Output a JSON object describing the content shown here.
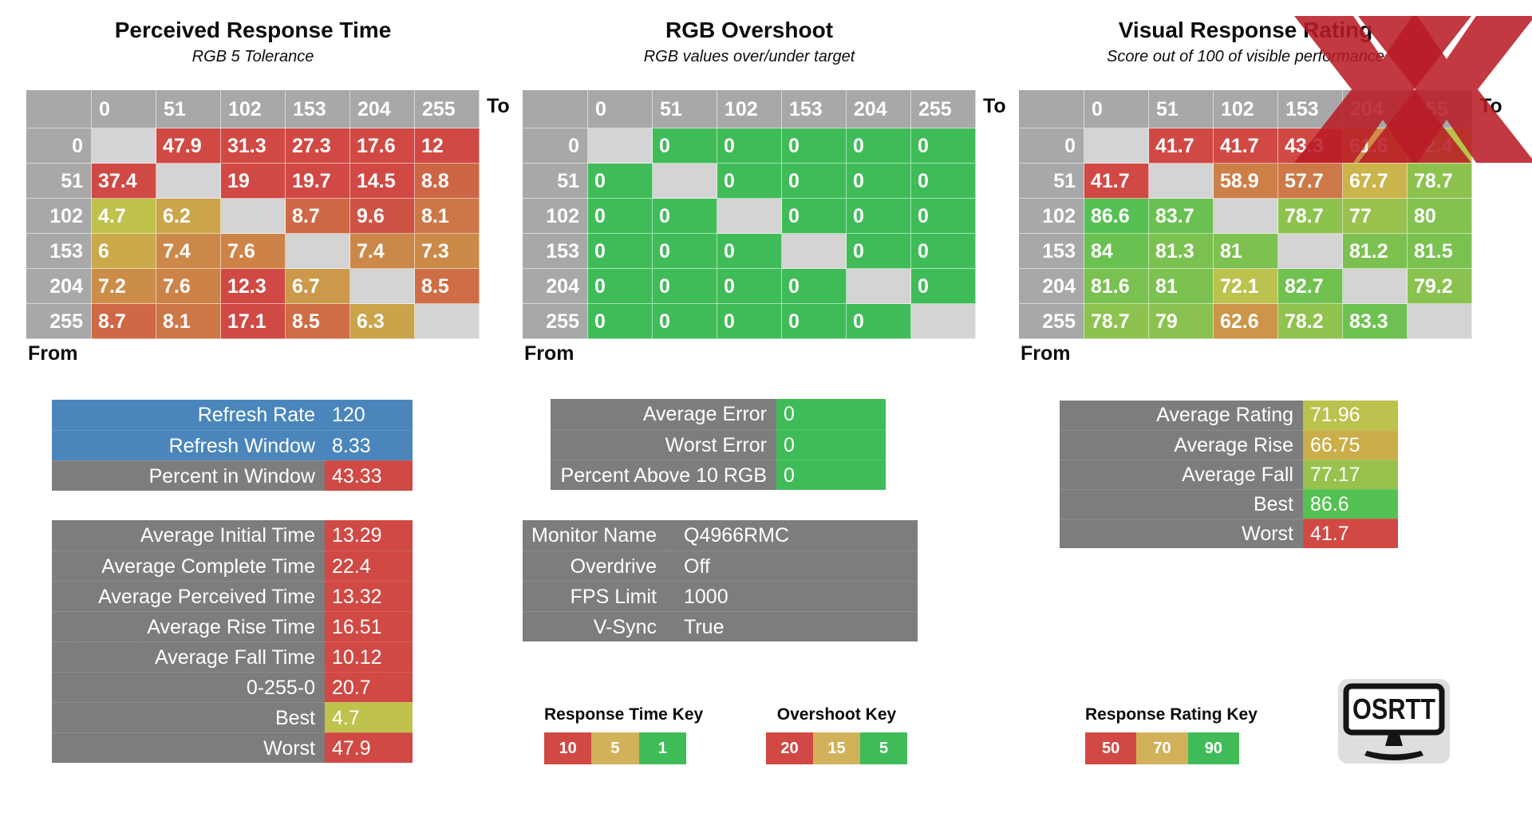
{
  "colors": {
    "header_gray": "#a8a8a8",
    "diagonal_gray": "#d4d4d4",
    "panel_gray": "#7d7d7d",
    "blue": "#4a86bb",
    "red": "#d04944",
    "key_yellow": "#d2b15b",
    "key_green": "#3fbc58",
    "x_mark_red": "#b91c26",
    "logo_bg": "#dedede"
  },
  "chart_data": [
    {
      "type": "heatmap",
      "title": "Perceived Response Time",
      "subtitle": "RGB 5 Tolerance",
      "x_axis_label": "To",
      "y_axis_label": "From",
      "x": [
        "0",
        "51",
        "102",
        "153",
        "204",
        "255"
      ],
      "y": [
        "0",
        "51",
        "102",
        "153",
        "204",
        "255"
      ],
      "values": [
        [
          null,
          47.9,
          31.3,
          27.3,
          17.6,
          12
        ],
        [
          37.4,
          null,
          19,
          19.7,
          14.5,
          8.8
        ],
        [
          4.7,
          6.2,
          null,
          8.7,
          9.6,
          8.1
        ],
        [
          6,
          7.4,
          7.6,
          null,
          7.4,
          7.3
        ],
        [
          7.2,
          7.6,
          12.3,
          6.7,
          null,
          8.5
        ],
        [
          8.7,
          8.1,
          17.1,
          8.5,
          6.3,
          null
        ]
      ],
      "color_scale": {
        "stops": [
          [
            1,
            "#3fc153"
          ],
          [
            5,
            "#c9c24c"
          ],
          [
            10,
            "#d04944"
          ]
        ]
      }
    },
    {
      "type": "heatmap",
      "title": "RGB Overshoot",
      "subtitle": "RGB values over/under target",
      "x_axis_label": "To",
      "y_axis_label": "From",
      "x": [
        "0",
        "51",
        "102",
        "153",
        "204",
        "255"
      ],
      "y": [
        "0",
        "51",
        "102",
        "153",
        "204",
        "255"
      ],
      "values": [
        [
          null,
          0,
          0,
          0,
          0,
          0
        ],
        [
          0,
          null,
          0,
          0,
          0,
          0
        ],
        [
          0,
          0,
          null,
          0,
          0,
          0
        ],
        [
          0,
          0,
          0,
          null,
          0,
          0
        ],
        [
          0,
          0,
          0,
          0,
          null,
          0
        ],
        [
          0,
          0,
          0,
          0,
          0,
          null
        ]
      ],
      "color_scale": {
        "stops": [
          [
            5,
            "#3fbc58"
          ],
          [
            15,
            "#c9c24c"
          ],
          [
            20,
            "#d04944"
          ]
        ]
      }
    },
    {
      "type": "heatmap",
      "title": "Visual Response Rating",
      "subtitle": "Score out of 100 of visible performance",
      "x_axis_label": "To",
      "y_axis_label": "From",
      "x": [
        "0",
        "51",
        "102",
        "153",
        "204",
        "255"
      ],
      "y": [
        "0",
        "51",
        "102",
        "153",
        "204",
        "255"
      ],
      "values": [
        [
          null,
          41.7,
          41.7,
          43.3,
          61.6,
          72.4
        ],
        [
          41.7,
          null,
          58.9,
          57.7,
          67.7,
          78.7
        ],
        [
          86.6,
          83.7,
          null,
          78.7,
          77,
          80
        ],
        [
          84,
          81.3,
          81,
          null,
          81.2,
          81.5
        ],
        [
          81.6,
          81,
          72.1,
          82.7,
          null,
          79.2
        ],
        [
          78.7,
          79,
          62.6,
          78.2,
          83.3,
          null
        ]
      ],
      "color_scale": {
        "stops": [
          [
            50,
            "#d04944"
          ],
          [
            70,
            "#c9c24c"
          ],
          [
            90,
            "#3fc153"
          ]
        ]
      }
    }
  ],
  "summary_panels": [
    {
      "id": "refresh-stats",
      "rows": [
        {
          "label": "Refresh Rate",
          "value": "120",
          "label_bg": "#4a86bb",
          "value_bg": "#4a86bb"
        },
        {
          "label": "Refresh Window",
          "value": "8.33",
          "label_bg": "#4a86bb",
          "value_bg": "#4a86bb"
        },
        {
          "label": "Percent in Window",
          "value": "43.33",
          "label_bg": "#7d7d7d",
          "value_bg": "#d04944"
        }
      ]
    },
    {
      "id": "time-stats",
      "rows": [
        {
          "label": "Average Initial Time",
          "value": "13.29",
          "label_bg": "#7d7d7d",
          "value_bg": "#d04944"
        },
        {
          "label": "Average Complete Time",
          "value": "22.4",
          "label_bg": "#7d7d7d",
          "value_bg": "#d04944"
        },
        {
          "label": "Average Perceived Time",
          "value": "13.32",
          "label_bg": "#7d7d7d",
          "value_bg": "#d04944"
        },
        {
          "label": "Average Rise Time",
          "value": "16.51",
          "label_bg": "#7d7d7d",
          "value_bg": "#d04944"
        },
        {
          "label": "Average Fall Time",
          "value": "10.12",
          "label_bg": "#7d7d7d",
          "value_bg": "#d04944"
        },
        {
          "label": "0-255-0",
          "value": "20.7",
          "label_bg": "#7d7d7d",
          "value_bg": "#d04944"
        },
        {
          "label": "Best",
          "value": "4.7",
          "label_bg": "#7d7d7d",
          "value_bg": "#bfc24d"
        },
        {
          "label": "Worst",
          "value": "47.9",
          "label_bg": "#7d7d7d",
          "value_bg": "#d04944"
        }
      ]
    },
    {
      "id": "overshoot-stats",
      "rows": [
        {
          "label": "Average Error",
          "value": "0",
          "label_bg": "#7d7d7d",
          "value_bg": "#3fbc58"
        },
        {
          "label": "Worst Error",
          "value": "0",
          "label_bg": "#7d7d7d",
          "value_bg": "#3fbc58"
        },
        {
          "label": "Percent Above 10 RGB",
          "value": "0",
          "label_bg": "#7d7d7d",
          "value_bg": "#3fbc58"
        }
      ]
    },
    {
      "id": "test-info",
      "rows": [
        {
          "label": "Monitor Name",
          "value": "Q4966RMC",
          "label_bg": "#7d7d7d",
          "value_bg": "#7d7d7d"
        },
        {
          "label": "Overdrive",
          "value": "Off",
          "label_bg": "#7d7d7d",
          "value_bg": "#7d7d7d"
        },
        {
          "label": "FPS Limit",
          "value": "1000",
          "label_bg": "#7d7d7d",
          "value_bg": "#7d7d7d"
        },
        {
          "label": "V-Sync",
          "value": "True",
          "label_bg": "#7d7d7d",
          "value_bg": "#7d7d7d"
        }
      ]
    },
    {
      "id": "rating-stats",
      "rows": [
        {
          "label": "Average Rating",
          "value": "71.96",
          "label_bg": "#7d7d7d",
          "value_bg": "#bbc24d"
        },
        {
          "label": "Average Rise",
          "value": "66.75",
          "label_bg": "#7d7d7d",
          "value_bg": "#caae4a"
        },
        {
          "label": "Average Fall",
          "value": "77.17",
          "label_bg": "#7d7d7d",
          "value_bg": "#98c24e"
        },
        {
          "label": "Best",
          "value": "86.6",
          "label_bg": "#7d7d7d",
          "value_bg": "#55c152"
        },
        {
          "label": "Worst",
          "value": "41.7",
          "label_bg": "#7d7d7d",
          "value_bg": "#d04944"
        }
      ]
    }
  ],
  "keys": [
    {
      "title": "Response Time Key",
      "entries": [
        {
          "label": "10",
          "color": "#d04944"
        },
        {
          "label": "5",
          "color": "#d2b15b"
        },
        {
          "label": "1",
          "color": "#3fbc58"
        }
      ]
    },
    {
      "title": "Overshoot Key",
      "entries": [
        {
          "label": "20",
          "color": "#d04944"
        },
        {
          "label": "15",
          "color": "#d2b15b"
        },
        {
          "label": "5",
          "color": "#3fbc58"
        }
      ]
    },
    {
      "title": "Response Rating Key",
      "entries": [
        {
          "label": "50",
          "color": "#d04944"
        },
        {
          "label": "70",
          "color": "#d2b15b"
        },
        {
          "label": "90",
          "color": "#3fbc58"
        }
      ]
    }
  ],
  "logo": {
    "label": "OSRTT"
  },
  "x_overlay": {
    "color": "#b91c26",
    "opacity": "0.87"
  }
}
